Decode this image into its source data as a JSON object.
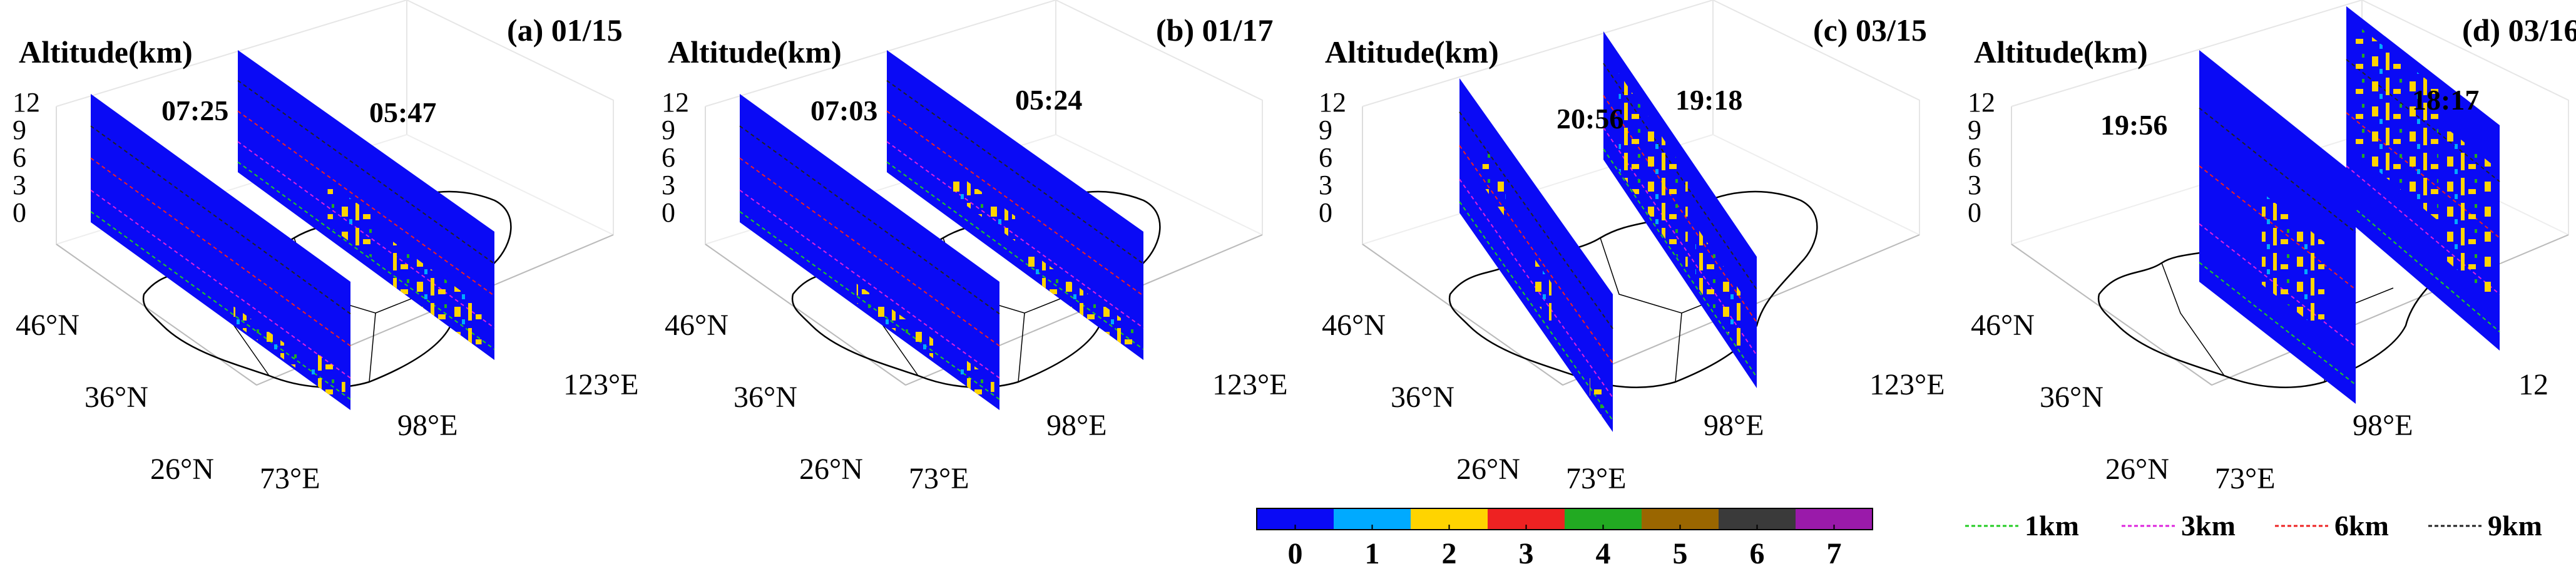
{
  "panels": [
    {
      "label": "(a) 01/15",
      "ylabel": "Altitude(km)",
      "times": [
        "07:25",
        "05:47"
      ]
    },
    {
      "label": "(b) 01/17",
      "ylabel": "Altitude(km)",
      "times": [
        "07:03",
        "05:24"
      ]
    },
    {
      "label": "(c) 03/15",
      "ylabel": "Altitude(km)",
      "times": [
        "20:56",
        "19:18"
      ]
    },
    {
      "label": "(d) 03/16",
      "ylabel": "Altitude(km)",
      "times": [
        "19:56",
        "18:17"
      ]
    }
  ],
  "z_ticks": [
    "12",
    "9",
    "6",
    "3",
    "0"
  ],
  "lat_ticks": [
    "46°N",
    "36°N",
    "26°N"
  ],
  "lon_ticks": [
    "73°E",
    "98°E",
    "123°E"
  ],
  "colorbar": {
    "ticks": [
      "0",
      "1",
      "2",
      "3",
      "4",
      "5",
      "6",
      "7"
    ],
    "colors": [
      "#0a0af5",
      "#00aaff",
      "#ffd400",
      "#ee2222",
      "#22aa22",
      "#9a6600",
      "#3a3a3a",
      "#9a1aaa"
    ]
  },
  "legend": [
    {
      "label": "1km",
      "color": "#22cc22"
    },
    {
      "label": "3km",
      "color": "#dd22dd"
    },
    {
      "label": "6km",
      "color": "#ee2222"
    },
    {
      "label": "9km",
      "color": "#222222"
    }
  ],
  "chart_data": {
    "type": "heatmap",
    "zlabel": "Altitude(km)",
    "z_range": [
      0,
      12
    ],
    "z_ticks": [
      0,
      3,
      6,
      9,
      12
    ],
    "lat_ticks": [
      26,
      36,
      46
    ],
    "lon_ticks": [
      73,
      98,
      123
    ],
    "class_range": [
      0,
      7
    ],
    "panels": [
      {
        "title": "(a) 01/15",
        "overpass_times": [
          "07:25",
          "05:47"
        ]
      },
      {
        "title": "(b) 01/17",
        "overpass_times": [
          "07:03",
          "05:24"
        ]
      },
      {
        "title": "(c) 03/15",
        "overpass_times": [
          "20:56",
          "19:18"
        ]
      },
      {
        "title": "(d) 03/16",
        "overpass_times": [
          "19:56",
          "18:17"
        ]
      }
    ],
    "reference_lines_km": [
      1,
      3,
      6,
      9
    ]
  }
}
